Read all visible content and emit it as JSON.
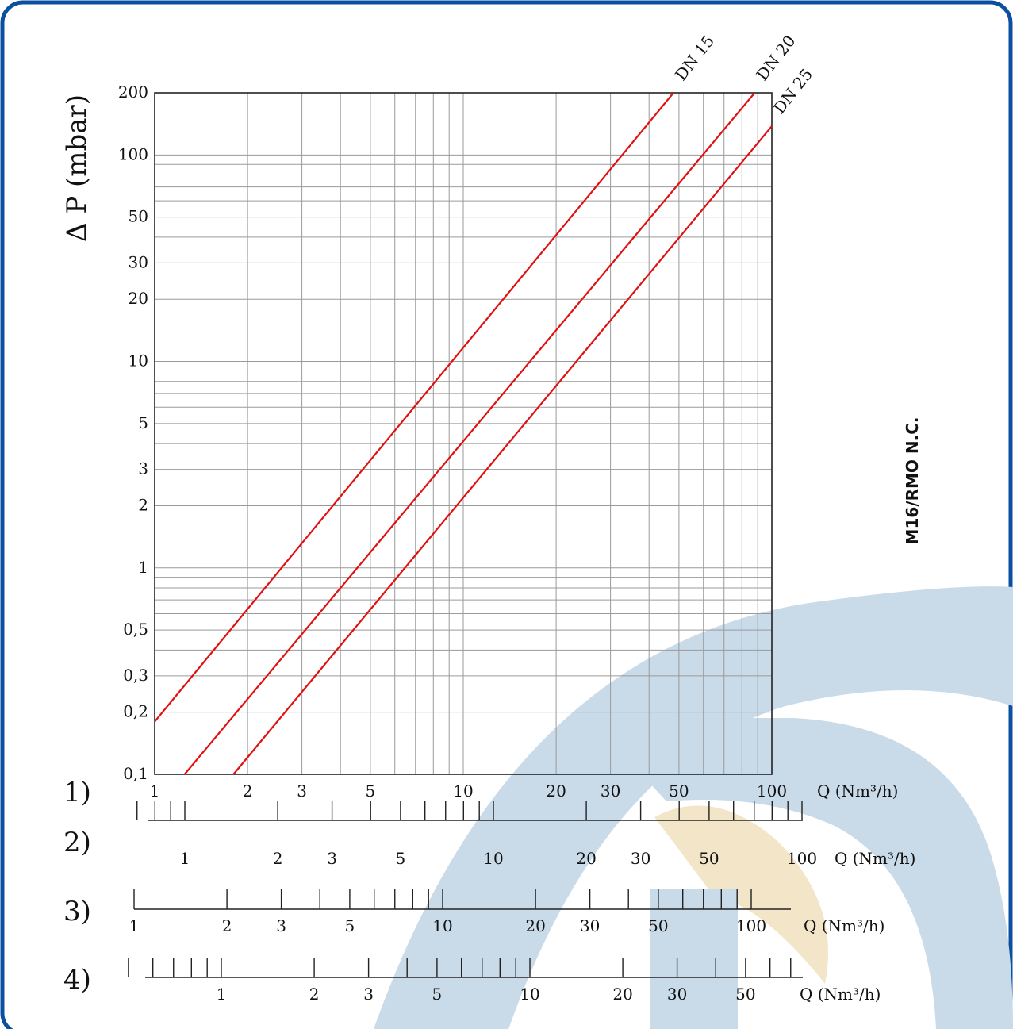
{
  "chart_data": {
    "type": "line",
    "scale": {
      "x": "log",
      "y": "log"
    },
    "xlim": [
      1,
      100
    ],
    "ylim": [
      0.1,
      200
    ],
    "grid": true,
    "ylabel": "Δ P (mbar)",
    "side_label": "M16/RMO N.C.",
    "y_ticks": [
      {
        "v": 0.1,
        "label": "0,1"
      },
      {
        "v": 0.2,
        "label": "0,2"
      },
      {
        "v": 0.3,
        "label": "0,3"
      },
      {
        "v": 0.5,
        "label": "0,5"
      },
      {
        "v": 1,
        "label": "1"
      },
      {
        "v": 2,
        "label": "2"
      },
      {
        "v": 3,
        "label": "3"
      },
      {
        "v": 5,
        "label": "5"
      },
      {
        "v": 10,
        "label": "10"
      },
      {
        "v": 20,
        "label": "20"
      },
      {
        "v": 30,
        "label": "30"
      },
      {
        "v": 50,
        "label": "50"
      },
      {
        "v": 100,
        "label": "100"
      },
      {
        "v": 200,
        "label": "200"
      }
    ],
    "series": [
      {
        "name": "DN 15",
        "color": "#e01010",
        "points": [
          [
            1,
            0.18
          ],
          [
            48,
            200
          ]
        ]
      },
      {
        "name": "DN 20",
        "color": "#e01010",
        "points": [
          [
            1.25,
            0.1
          ],
          [
            88,
            200
          ]
        ]
      },
      {
        "name": "DN 25",
        "color": "#e01010",
        "points": [
          [
            1.8,
            0.1
          ],
          [
            100,
            138
          ]
        ]
      }
    ],
    "x_scales": [
      {
        "label": "1)",
        "unit": "Q (Nm³/h)",
        "labeled": [
          [
            1,
            "1"
          ],
          [
            2,
            "2"
          ],
          [
            3,
            "3"
          ],
          [
            5,
            "5"
          ],
          [
            10,
            "10"
          ],
          [
            20,
            "20"
          ],
          [
            30,
            "30"
          ],
          [
            50,
            "50"
          ],
          [
            100,
            "100"
          ]
        ],
        "ticks": []
      },
      {
        "label": "2)",
        "unit": "Q (Nm³/h)",
        "labeled": [
          [
            1,
            "1"
          ],
          [
            2,
            "2"
          ],
          [
            3,
            "3"
          ],
          [
            5,
            "5"
          ],
          [
            10,
            "10"
          ],
          [
            20,
            "20"
          ],
          [
            30,
            "30"
          ],
          [
            50,
            "50"
          ],
          [
            100,
            "100"
          ]
        ],
        "ticks": [
          0.7,
          0.8,
          0.9,
          1,
          2,
          3,
          4,
          5,
          6,
          7,
          8,
          9,
          10,
          20,
          30,
          40,
          50,
          60,
          70,
          80,
          90,
          100
        ]
      },
      {
        "label": "3)",
        "unit": "Q (Nm³/h)",
        "labeled": [
          [
            1,
            "1"
          ],
          [
            2,
            "2"
          ],
          [
            3,
            "3"
          ],
          [
            5,
            "5"
          ],
          [
            10,
            "10"
          ],
          [
            20,
            "20"
          ],
          [
            30,
            "30"
          ],
          [
            50,
            "50"
          ],
          [
            100,
            "100"
          ]
        ],
        "ticks": [
          1,
          2,
          3,
          4,
          5,
          6,
          7,
          8,
          9,
          10,
          20,
          30,
          40,
          50,
          60,
          70,
          80,
          90,
          100
        ]
      },
      {
        "label": "4)",
        "unit": "Q (Nm³/h)",
        "labeled": [
          [
            1,
            "1"
          ],
          [
            2,
            "2"
          ],
          [
            3,
            "3"
          ],
          [
            5,
            "5"
          ],
          [
            10,
            "10"
          ],
          [
            20,
            "20"
          ],
          [
            30,
            "30"
          ],
          [
            50,
            "50"
          ]
        ],
        "ticks": [
          0.5,
          0.6,
          0.7,
          0.8,
          0.9,
          1,
          2,
          3,
          4,
          5,
          6,
          7,
          8,
          9,
          10,
          20,
          30,
          40,
          50,
          60,
          70
        ]
      }
    ]
  },
  "colors": {
    "frame": "#0b4fa0",
    "watermark_blue": "#c9dae8",
    "watermark_gold": "#f3e6c8",
    "grid": "#9a9a9a",
    "text": "#111111"
  }
}
